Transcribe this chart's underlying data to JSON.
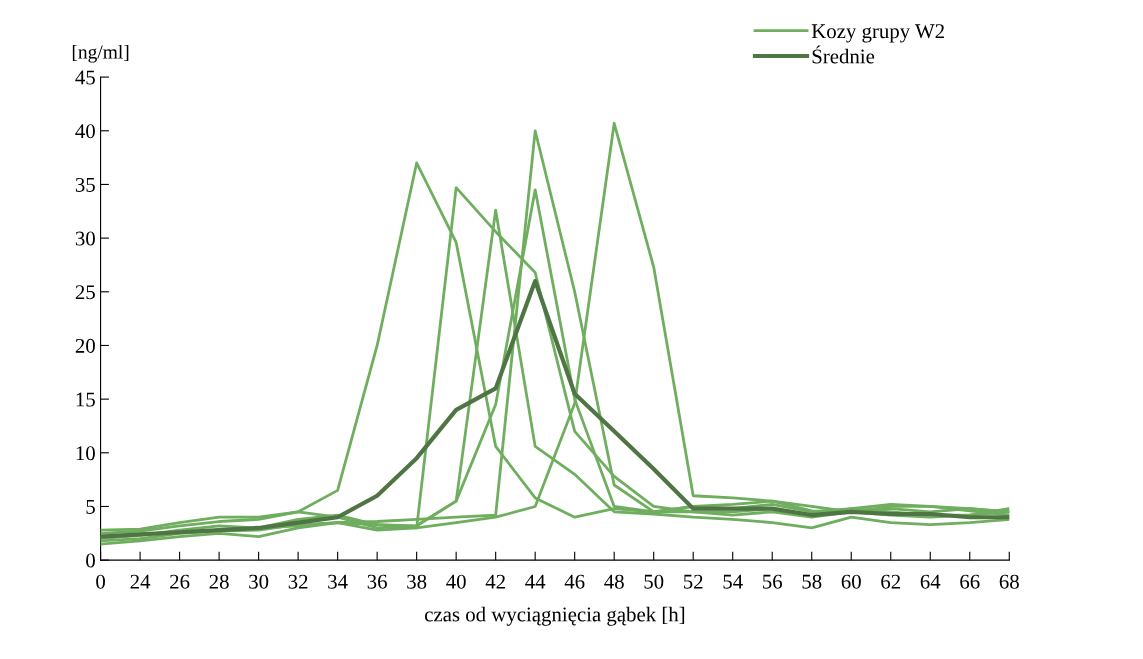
{
  "chart_data": {
    "type": "line",
    "ylabel": "[ng/ml]",
    "xlabel": "czas od wyciągnięcia gąbek [h]",
    "categories": [
      "0",
      "24",
      "26",
      "28",
      "30",
      "32",
      "34",
      "36",
      "38",
      "40",
      "42",
      "44",
      "46",
      "48",
      "50",
      "52",
      "54",
      "56",
      "58",
      "60",
      "62",
      "64",
      "66",
      "68"
    ],
    "ylim": [
      0,
      45
    ],
    "yticks": [
      0,
      5,
      10,
      15,
      20,
      25,
      30,
      35,
      40,
      45
    ],
    "grid": false,
    "legend": "top right",
    "marker": "none",
    "line_style": "solid",
    "series": [
      {
        "name": "Kozy grupy W2",
        "color": "#6fae5f",
        "values": [
          2.5,
          2.7,
          3.2,
          3.6,
          3.8,
          4.5,
          6.5,
          20,
          37,
          29.6,
          10.6,
          5.8,
          4.0,
          4.8,
          4.5,
          5.0,
          5.2,
          5.5,
          4.6,
          4.5,
          5.0,
          5.0,
          4.8,
          4.5
        ]
      },
      {
        "color": "#6fae5f",
        "values": [
          2.0,
          2.3,
          2.8,
          3.2,
          3.0,
          3.8,
          4.2,
          3.3,
          3.0,
          34.7,
          30.6,
          26.8,
          12.0,
          7.8,
          5.0,
          4.5,
          4.2,
          4.5,
          4.0,
          4.5,
          4.2,
          4.0,
          4.2,
          4.8
        ]
      },
      {
        "color": "#6fae5f",
        "values": [
          1.5,
          1.8,
          2.2,
          2.5,
          2.2,
          3.0,
          3.5,
          3.3,
          3.2,
          5.5,
          32.6,
          10.6,
          8.0,
          4.5,
          4.3,
          4.0,
          3.8,
          3.5,
          3.0,
          4.0,
          3.5,
          3.3,
          3.5,
          3.8
        ]
      },
      {
        "color": "#6fae5f",
        "values": [
          2.2,
          2.4,
          2.6,
          2.8,
          3.0,
          3.2,
          3.5,
          3.6,
          3.8,
          4.0,
          4.2,
          40,
          25,
          7.0,
          4.5,
          4.5,
          4.5,
          4.8,
          4.2,
          4.8,
          4.5,
          4.2,
          4.2,
          4.5
        ]
      },
      {
        "color": "#6fae5f",
        "values": [
          2.8,
          2.9,
          3.5,
          4.0,
          4.0,
          4.5,
          4.0,
          3.0,
          3.2,
          5.5,
          14.5,
          34.5,
          15.0,
          5.0,
          4.5,
          5.0,
          4.8,
          5.2,
          4.5,
          4.8,
          5.2,
          5.0,
          4.6,
          4.2
        ]
      },
      {
        "color": "#6fae5f",
        "values": [
          1.8,
          2.0,
          2.5,
          2.7,
          2.8,
          3.3,
          3.5,
          2.8,
          3.0,
          3.5,
          4.0,
          5.0,
          14.6,
          40.7,
          27.3,
          6.0,
          5.8,
          5.5,
          5.0,
          4.5,
          4.8,
          4.5,
          4.8,
          4.5
        ]
      },
      {
        "name": "Średnie",
        "color": "#4f7545",
        "values": [
          2.2,
          2.4,
          2.6,
          2.8,
          3.0,
          3.5,
          4.0,
          6.0,
          9.5,
          14.0,
          16.0,
          26.0,
          15.5,
          12.0,
          8.5,
          4.8,
          4.8,
          4.8,
          4.2,
          4.5,
          4.3,
          4.3,
          4.0,
          4.0
        ]
      }
    ]
  }
}
